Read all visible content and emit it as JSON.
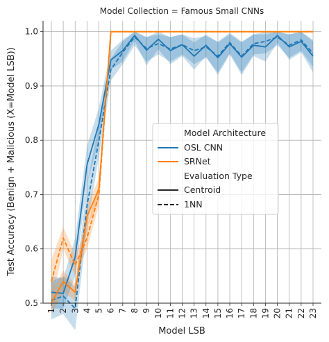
{
  "chart_data": {
    "type": "line",
    "title": "Model Collection = Famous Small CNNs",
    "xlabel": "Model LSB",
    "ylabel": "Test Accuracy (Benign + Malicious (X=Model LSB))",
    "x": [
      1,
      2,
      3,
      4,
      5,
      6,
      7,
      8,
      9,
      10,
      11,
      12,
      13,
      14,
      15,
      16,
      17,
      18,
      19,
      20,
      21,
      22,
      23
    ],
    "xlim": [
      0.3,
      23.7
    ],
    "ylim": [
      0.5,
      1.02
    ],
    "yticks": [
      0.5,
      0.6,
      0.7,
      0.8,
      0.9,
      1.0
    ],
    "ytick_labels": [
      "0.5",
      "0.6",
      "0.7",
      "0.8",
      "0.9",
      "1.0"
    ],
    "grid": true,
    "legend": {
      "placement": "center-right",
      "title_architecture": "Model Architecture",
      "title_evaluation": "Evaluation Type",
      "architectures": [
        {
          "name": "OSL CNN",
          "color": "#1f77b4"
        },
        {
          "name": "SRNet",
          "color": "#ff7f0e"
        }
      ],
      "evaluation_types": [
        {
          "name": "Centroid",
          "style": "solid"
        },
        {
          "name": "1NN",
          "style": "dashed"
        }
      ]
    },
    "series": [
      {
        "architecture": "OSL CNN",
        "evaluation": "Centroid",
        "color": "#1f77b4",
        "dashed": false,
        "values": [
          0.52,
          0.518,
          0.585,
          0.755,
          0.83,
          0.948,
          0.965,
          0.993,
          0.966,
          0.986,
          0.965,
          0.976,
          0.955,
          0.975,
          0.952,
          0.978,
          0.953,
          0.975,
          0.972,
          0.993,
          0.972,
          0.982,
          0.955
        ],
        "lower": [
          0.49,
          0.49,
          0.55,
          0.72,
          0.8,
          0.93,
          0.945,
          0.983,
          0.938,
          0.968,
          0.94,
          0.955,
          0.93,
          0.955,
          0.92,
          0.958,
          0.92,
          0.955,
          0.945,
          0.98,
          0.948,
          0.962,
          0.925
        ],
        "upper": [
          0.55,
          0.545,
          0.62,
          0.79,
          0.86,
          0.965,
          0.985,
          1.0,
          0.99,
          1.0,
          0.99,
          0.995,
          0.98,
          0.995,
          0.98,
          0.995,
          0.98,
          0.995,
          0.995,
          1.0,
          0.995,
          1.0,
          0.982
        ]
      },
      {
        "architecture": "OSL CNN",
        "evaluation": "1NN",
        "color": "#1f77b4",
        "dashed": true,
        "values": [
          0.505,
          0.513,
          0.49,
          0.68,
          0.8,
          0.93,
          0.962,
          0.99,
          0.969,
          0.978,
          0.968,
          0.976,
          0.965,
          0.972,
          0.955,
          0.98,
          0.955,
          0.978,
          0.982,
          0.99,
          0.975,
          0.985,
          0.96
        ],
        "lower": [
          0.47,
          0.48,
          0.45,
          0.64,
          0.77,
          0.91,
          0.94,
          0.975,
          0.945,
          0.958,
          0.945,
          0.958,
          0.94,
          0.952,
          0.925,
          0.96,
          0.925,
          0.958,
          0.96,
          0.975,
          0.952,
          0.965,
          0.935
        ],
        "upper": [
          0.54,
          0.55,
          0.53,
          0.72,
          0.83,
          0.95,
          0.982,
          1.0,
          0.99,
          0.995,
          0.99,
          0.995,
          0.988,
          0.992,
          0.982,
          0.998,
          0.982,
          0.995,
          1.0,
          1.0,
          0.995,
          1.0,
          0.985
        ]
      },
      {
        "architecture": "SRNet",
        "evaluation": "Centroid",
        "color": "#ff7f0e",
        "dashed": false,
        "values": [
          0.5,
          0.54,
          0.52,
          0.66,
          0.71,
          1.0,
          1.0,
          1.0,
          1.0,
          1.0,
          1.0,
          1.0,
          1.0,
          1.0,
          1.0,
          1.0,
          1.0,
          1.0,
          1.0,
          1.0,
          1.0,
          1.0,
          1.0
        ],
        "lower": [
          0.48,
          0.52,
          0.505,
          0.64,
          0.69,
          1.0,
          1.0,
          1.0,
          1.0,
          1.0,
          1.0,
          1.0,
          1.0,
          1.0,
          1.0,
          1.0,
          1.0,
          1.0,
          1.0,
          1.0,
          1.0,
          1.0,
          1.0
        ],
        "upper": [
          0.52,
          0.56,
          0.535,
          0.68,
          0.73,
          1.0,
          1.0,
          1.0,
          1.0,
          1.0,
          1.0,
          1.0,
          1.0,
          1.0,
          1.0,
          1.0,
          1.0,
          1.0,
          1.0,
          1.0,
          1.0,
          1.0,
          1.0
        ]
      },
      {
        "architecture": "SRNet",
        "evaluation": "1NN",
        "color": "#ff7f0e",
        "dashed": true,
        "values": [
          0.54,
          0.62,
          0.57,
          0.62,
          0.7,
          1.0,
          1.0,
          1.0,
          1.0,
          1.0,
          1.0,
          1.0,
          1.0,
          1.0,
          1.0,
          1.0,
          1.0,
          1.0,
          1.0,
          1.0,
          1.0,
          1.0,
          1.0
        ],
        "lower": [
          0.5,
          0.6,
          0.55,
          0.6,
          0.68,
          1.0,
          1.0,
          1.0,
          1.0,
          1.0,
          1.0,
          1.0,
          1.0,
          1.0,
          1.0,
          1.0,
          1.0,
          1.0,
          1.0,
          1.0,
          1.0,
          1.0,
          1.0
        ],
        "upper": [
          0.58,
          0.64,
          0.59,
          0.64,
          0.72,
          1.0,
          1.0,
          1.0,
          1.0,
          1.0,
          1.0,
          1.0,
          1.0,
          1.0,
          1.0,
          1.0,
          1.0,
          1.0,
          1.0,
          1.0,
          1.0,
          1.0,
          1.0
        ]
      }
    ]
  }
}
